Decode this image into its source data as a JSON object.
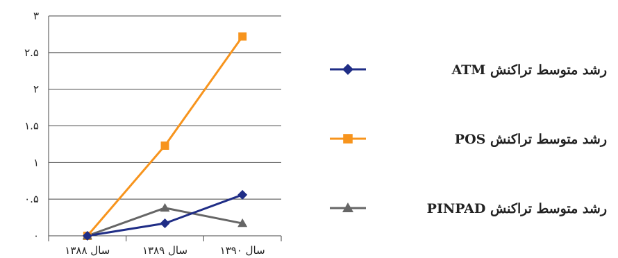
{
  "chart_data": {
    "type": "line",
    "categories": [
      "سال ۱۳۸۸",
      "سال ۱۳۸۹",
      "سال ۱۳۹۰"
    ],
    "series": [
      {
        "name": "رشد متوسط تراکنش ATM",
        "values": [
          0,
          0.17,
          0.56
        ],
        "color": "#1f2d86",
        "marker": "diamond"
      },
      {
        "name": "رشد متوسط تراکنش POS",
        "values": [
          0,
          1.23,
          2.72
        ],
        "color": "#f7941d",
        "marker": "square"
      },
      {
        "name": "رشد متوسط تراکنش PINPAD",
        "values": [
          0,
          0.38,
          0.17
        ],
        "color": "#666666",
        "marker": "triangle"
      }
    ],
    "y_ticks": [
      "۰",
      "۰.۵",
      "۱",
      "۱.۵",
      "۲",
      "۲.۵",
      "۳"
    ],
    "ylim": [
      0,
      3
    ],
    "grid": true,
    "legend_position": "right"
  }
}
